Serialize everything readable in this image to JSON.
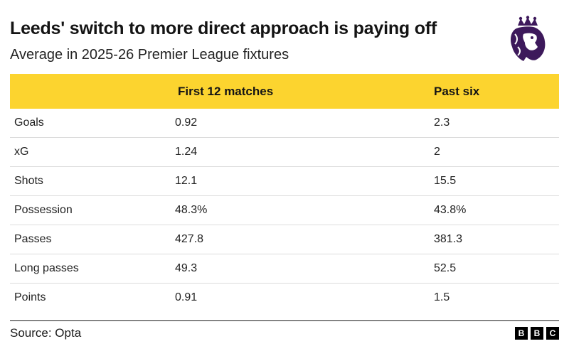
{
  "header": {
    "title": "Leeds' switch to more direct approach is paying off",
    "subtitle": "Average in 2025-26 Premier League fixtures"
  },
  "logo_icon": "premier-league-lion-icon",
  "colors": {
    "header_bg": "#fcd42f",
    "logo": "#3d195b"
  },
  "chart_data": {
    "type": "table",
    "title": "Leeds' switch to more direct approach is paying off",
    "subtitle": "Average in 2025-26 Premier League fixtures",
    "columns": [
      "",
      "First 12 matches",
      "Past six"
    ],
    "rows": [
      [
        "Goals",
        "0.92",
        "2.3"
      ],
      [
        "xG",
        "1.24",
        "2"
      ],
      [
        "Shots",
        "12.1",
        "15.5"
      ],
      [
        "Possession",
        "48.3%",
        "43.8%"
      ],
      [
        "Passes",
        "427.8",
        "381.3"
      ],
      [
        "Long passes",
        "49.3",
        "52.5"
      ],
      [
        "Points",
        "0.91",
        "1.5"
      ]
    ]
  },
  "footer": {
    "source": "Source: Opta",
    "brand_letters": [
      "B",
      "B",
      "C"
    ]
  }
}
